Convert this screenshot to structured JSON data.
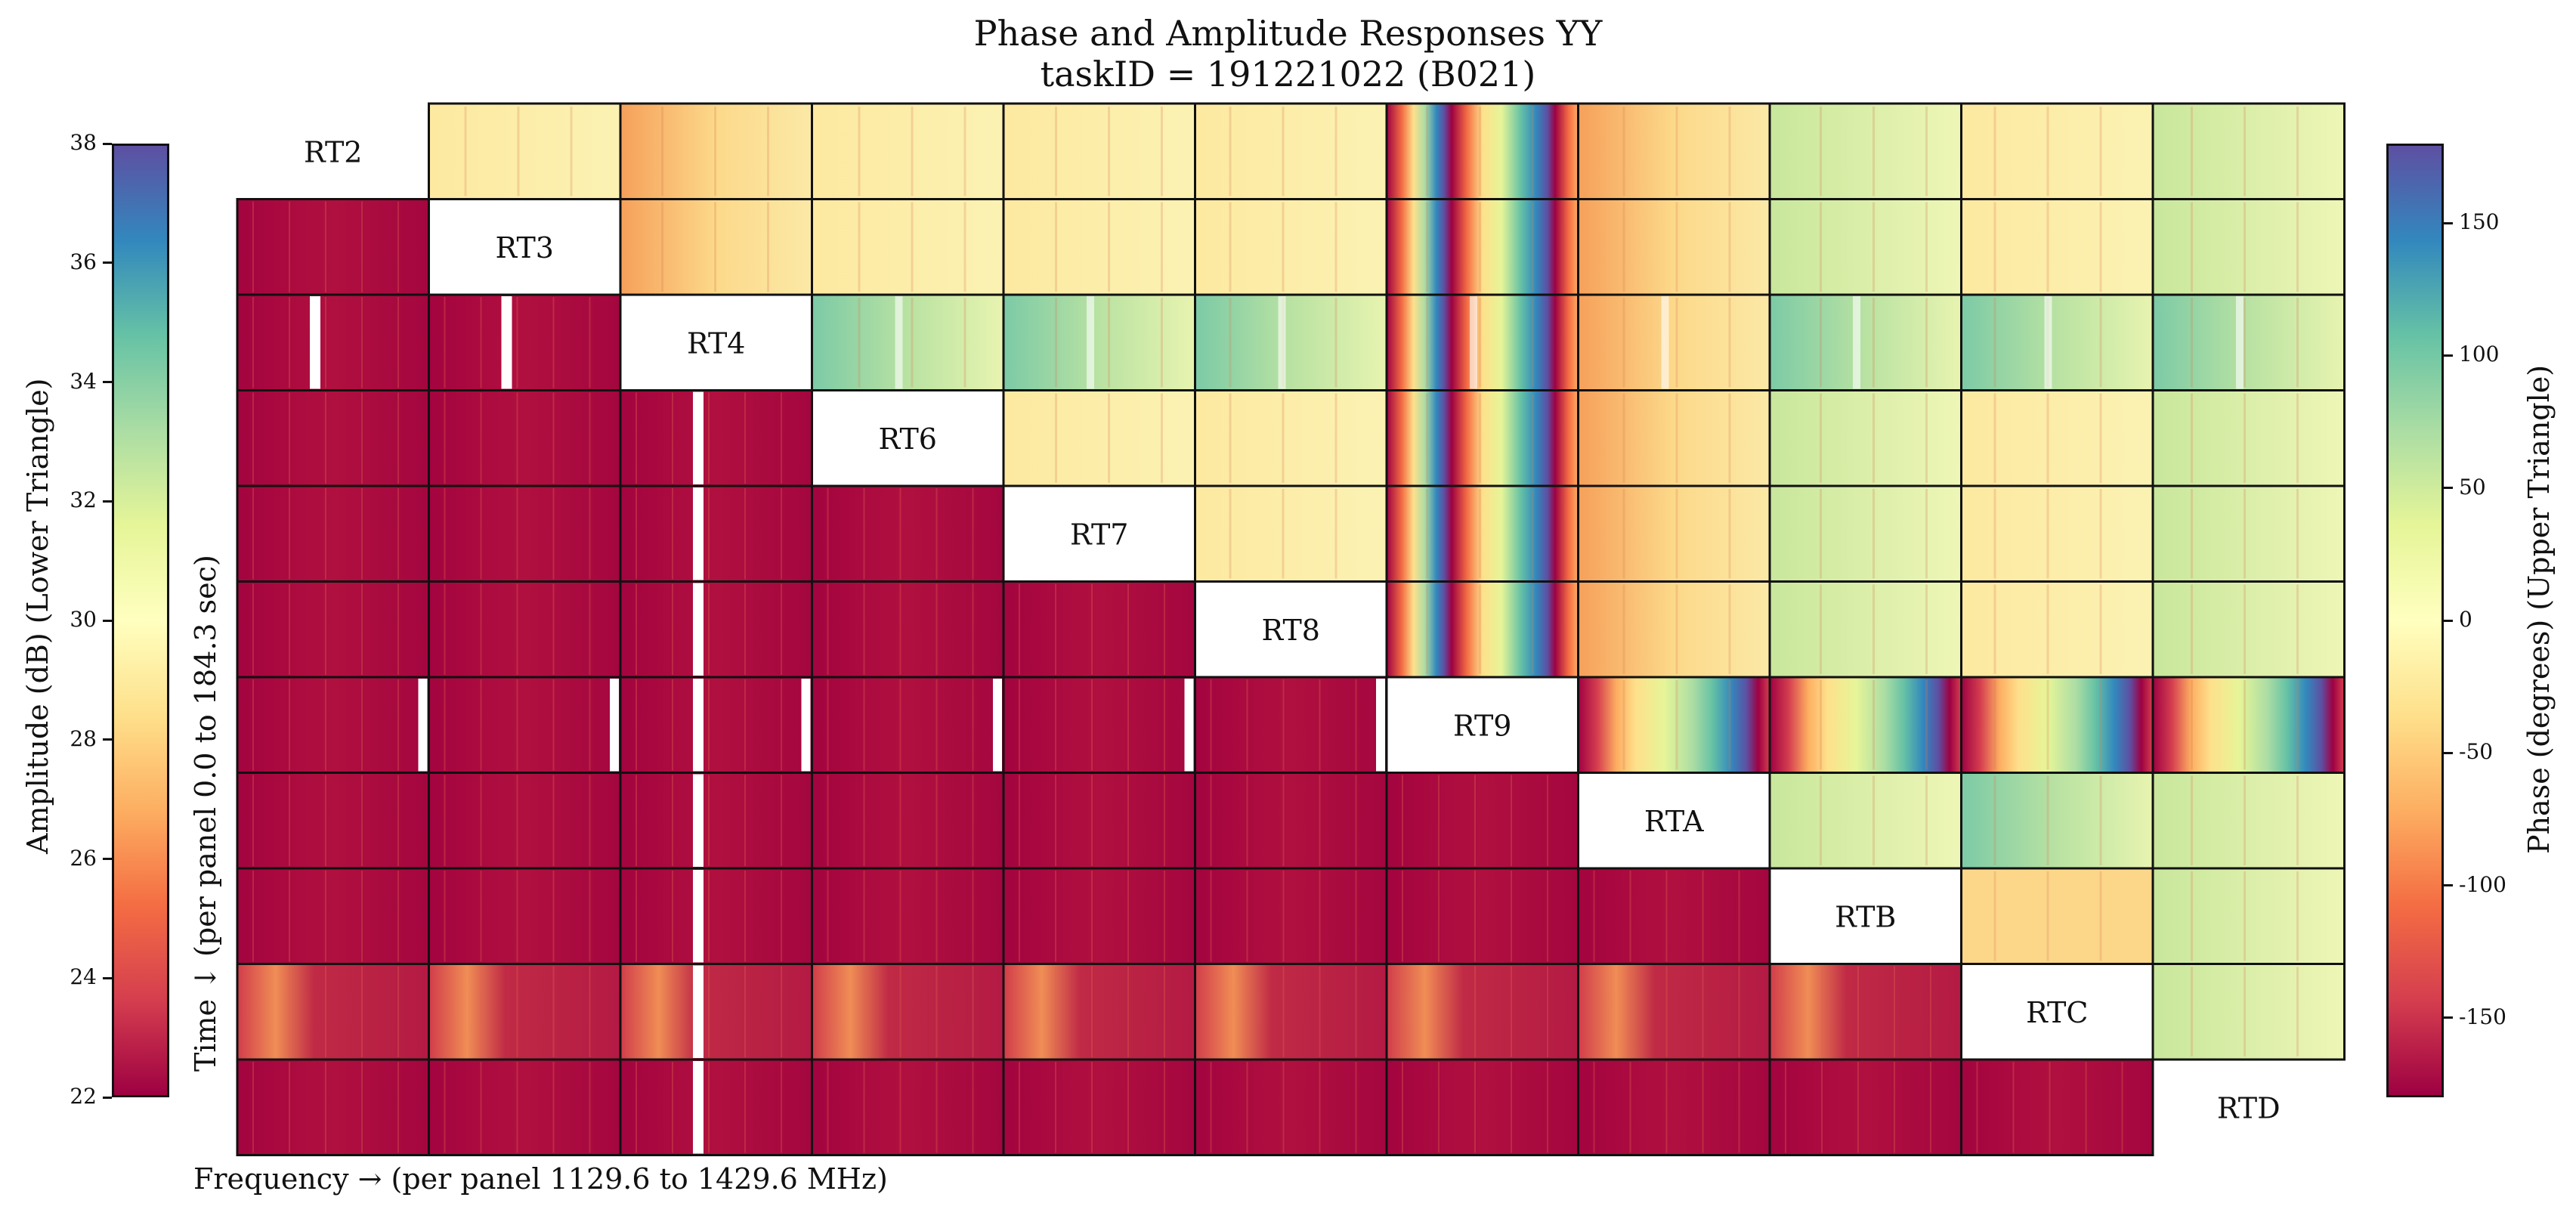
{
  "chart_data": {
    "type": "heatmap",
    "title": "Phase and Amplitude Responses YY",
    "subtitle": "taskID = 191221022 (B021)",
    "antennas": [
      "RT2",
      "RT3",
      "RT4",
      "RT6",
      "RT7",
      "RT8",
      "RT9",
      "RTA",
      "RTB",
      "RTC",
      "RTD"
    ],
    "upper_triangle": "Phase",
    "lower_triangle": "Amplitude",
    "xlabel": "Frequency → (per panel 1129.6 to 1429.6 MHz)",
    "ylabel": "Time ↓ (per panel 0.0 to 184.3 sec)",
    "amplitude_colorbar": {
      "label": "Amplitude (dB) (Lower Triangle)",
      "range": [
        22,
        38
      ],
      "ticks": [
        "22",
        "24",
        "26",
        "28",
        "30",
        "32",
        "34",
        "36",
        "38"
      ],
      "colormap": "Spectral"
    },
    "phase_colorbar": {
      "label": "Phase (degrees) (Upper Triangle)",
      "range": [
        -180,
        180
      ],
      "ticks": [
        "-150",
        "-100",
        "-50",
        "0",
        "50",
        "100",
        "150"
      ],
      "colormap": "Spectral"
    }
  },
  "colors": {
    "spectral": [
      "#9e0142",
      "#d53e4f",
      "#f46d43",
      "#fdae61",
      "#fee08b",
      "#ffffbf",
      "#e6f598",
      "#abdda4",
      "#66c2a5",
      "#3288bd",
      "#5e4fa2"
    ]
  }
}
